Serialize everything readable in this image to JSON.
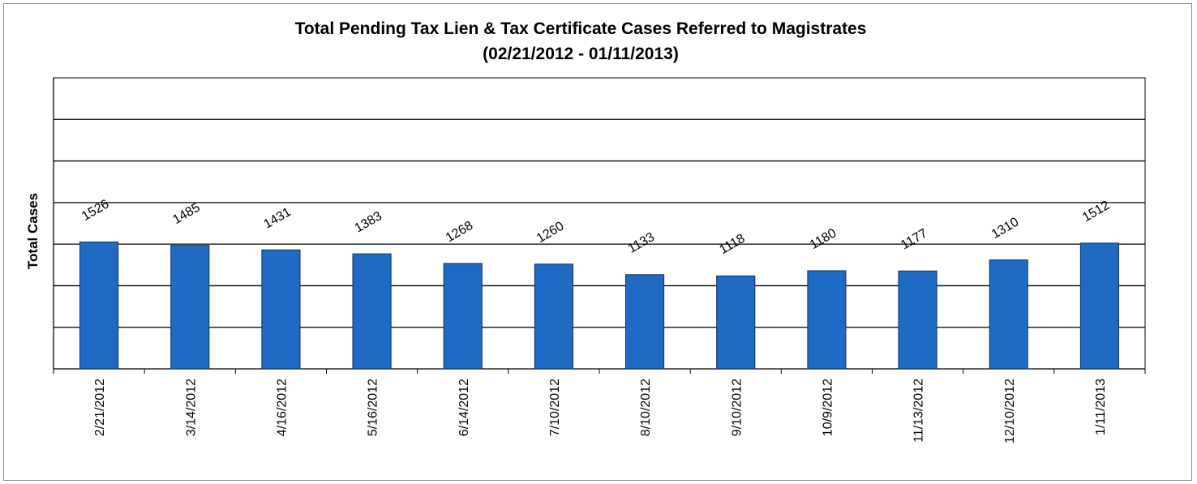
{
  "chart_data": {
    "type": "bar",
    "title": "Total Pending Tax Lien & Tax Certificate Cases Referred to Magistrates",
    "subtitle": "(02/21/2012 - 01/11/2013)",
    "xlabel": "",
    "ylabel": "Total Cases",
    "categories": [
      "2/21/2012",
      "3/14/2012",
      "4/16/2012",
      "5/16/2012",
      "6/14/2012",
      "7/10/2012",
      "8/10/2012",
      "9/10/2012",
      "10/9/2012",
      "11/13/2012",
      "12/10/2012",
      "1/11/2013"
    ],
    "values": [
      1526,
      1485,
      1431,
      1383,
      1268,
      1260,
      1133,
      1118,
      1180,
      1177,
      1310,
      1512
    ],
    "ylim": [
      0,
      3500
    ],
    "grid": true,
    "legend": "none",
    "colors": {
      "bar": "#1f6bc4",
      "bar_edge": "#0b2f66",
      "grid": "#000000"
    }
  }
}
